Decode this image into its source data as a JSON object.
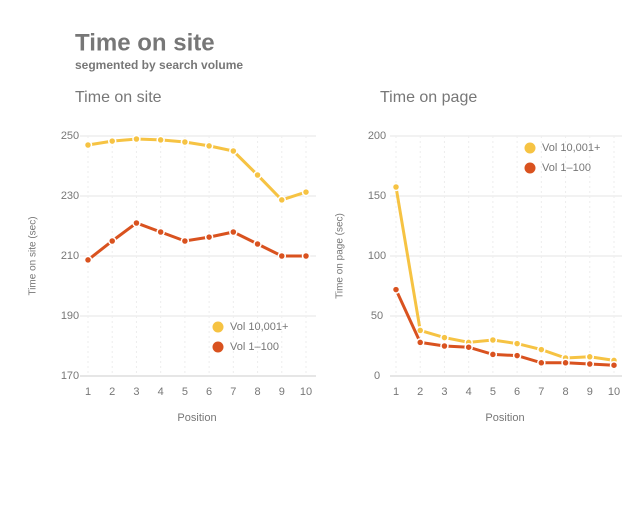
{
  "title": "Time on site",
  "subtitle": "segmented by search volume",
  "chart_data": [
    {
      "type": "line",
      "title": "Time on site",
      "xlabel": "Position",
      "ylabel": "Time on site (sec)",
      "x": [
        1,
        2,
        3,
        4,
        5,
        6,
        7,
        8,
        9,
        10
      ],
      "xlim": [
        1,
        10
      ],
      "xticks": [
        1,
        2,
        3,
        4,
        5,
        6,
        7,
        8,
        9,
        10
      ],
      "ylim": [
        170,
        250
      ],
      "yticks": [
        170,
        190,
        210,
        230,
        250
      ],
      "grid": true,
      "legend": "lower right",
      "series": [
        {
          "name": "Vol 10,001+",
          "color": "#f6c343",
          "values": [
            247,
            248.3,
            249,
            248.7,
            248,
            246.7,
            245,
            237,
            228.7,
            231.3
          ]
        },
        {
          "name": "Vol 1–100",
          "color": "#d9521f",
          "values": [
            208.7,
            215,
            221,
            218,
            215,
            216.3,
            218,
            214,
            210,
            210
          ]
        }
      ]
    },
    {
      "type": "line",
      "title": "Time on page",
      "xlabel": "Position",
      "ylabel": "Time on page (sec)",
      "x": [
        1,
        2,
        3,
        4,
        5,
        6,
        7,
        8,
        9,
        10
      ],
      "xlim": [
        1,
        10
      ],
      "xticks": [
        1,
        2,
        3,
        4,
        5,
        6,
        7,
        8,
        9,
        10
      ],
      "ylim": [
        0,
        200
      ],
      "yticks": [
        0,
        50,
        100,
        150,
        200
      ],
      "grid": true,
      "legend": "upper right",
      "series": [
        {
          "name": "Vol 10,001+",
          "color": "#f6c343",
          "values": [
            157.5,
            38,
            32,
            28,
            30,
            27,
            22,
            15,
            16,
            13
          ]
        },
        {
          "name": "Vol 1–100",
          "color": "#d9521f",
          "values": [
            72,
            28,
            25,
            24,
            18,
            17,
            11,
            11,
            10,
            9
          ]
        }
      ]
    }
  ]
}
